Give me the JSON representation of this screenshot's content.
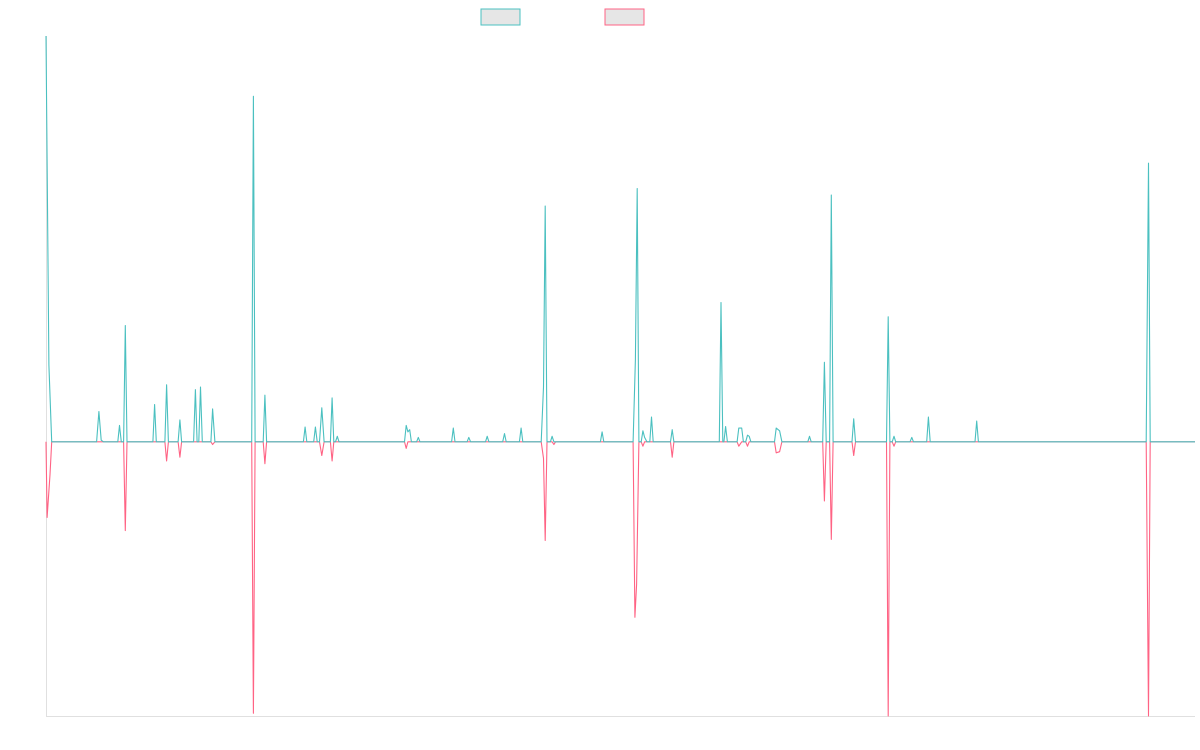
{
  "colors": {
    "series_a": "#4bc0c0",
    "series_b": "#ff6384",
    "axis": "#e0e0e0",
    "legend_fill": "#e6e6e6"
  },
  "chart_data": {
    "type": "line",
    "title": "",
    "xlabel": "",
    "ylabel": "",
    "grid": false,
    "legend": "top-center",
    "x": [
      0,
      200
    ],
    "ylim": [
      -500,
      740
    ],
    "series": [
      {
        "color": "#4bc0c0",
        "points": [
          [
            0,
            740
          ],
          [
            0.5,
            140
          ],
          [
            1.0,
            0
          ],
          [
            3,
            0
          ],
          [
            8.8,
            0
          ],
          [
            9.2,
            55
          ],
          [
            9.6,
            3
          ],
          [
            10,
            0
          ],
          [
            12.5,
            0
          ],
          [
            12.8,
            30
          ],
          [
            13.1,
            0
          ],
          [
            13.5,
            0
          ],
          [
            13.8,
            212
          ],
          [
            14.1,
            0
          ],
          [
            18.6,
            0
          ],
          [
            18.9,
            68
          ],
          [
            19.2,
            0
          ],
          [
            20.7,
            0
          ],
          [
            21,
            104
          ],
          [
            21.3,
            0
          ],
          [
            23,
            0
          ],
          [
            23.3,
            40
          ],
          [
            23.6,
            0
          ],
          [
            25.7,
            0
          ],
          [
            26,
            95
          ],
          [
            26.3,
            0
          ],
          [
            26.6,
            0
          ],
          [
            26.9,
            100
          ],
          [
            27.2,
            0
          ],
          [
            28.7,
            0
          ],
          [
            29,
            60
          ],
          [
            29.4,
            0
          ],
          [
            35.8,
            0
          ],
          [
            36.1,
            630
          ],
          [
            36.4,
            0
          ],
          [
            37.8,
            0
          ],
          [
            38.1,
            85
          ],
          [
            38.4,
            0
          ],
          [
            44.8,
            0
          ],
          [
            45.1,
            27
          ],
          [
            45.4,
            0
          ],
          [
            46.6,
            0
          ],
          [
            46.9,
            27
          ],
          [
            47.2,
            0
          ],
          [
            47.6,
            0
          ],
          [
            48,
            62
          ],
          [
            48.4,
            0
          ],
          [
            49.5,
            0
          ],
          [
            49.8,
            80
          ],
          [
            50.1,
            0
          ],
          [
            50.4,
            0
          ],
          [
            50.7,
            10
          ],
          [
            51,
            0
          ],
          [
            62.4,
            0
          ],
          [
            62.7,
            30
          ],
          [
            63,
            18
          ],
          [
            63.3,
            22
          ],
          [
            63.6,
            0
          ],
          [
            64.5,
            0
          ],
          [
            64.8,
            8
          ],
          [
            65.1,
            0
          ],
          [
            70.6,
            0
          ],
          [
            70.9,
            25
          ],
          [
            71.2,
            0
          ],
          [
            73.3,
            0
          ],
          [
            73.6,
            8
          ],
          [
            73.9,
            0
          ],
          [
            76.5,
            0
          ],
          [
            76.8,
            10
          ],
          [
            77.1,
            0
          ],
          [
            79.5,
            0
          ],
          [
            79.8,
            15
          ],
          [
            80.1,
            0
          ],
          [
            82.4,
            0
          ],
          [
            82.7,
            25
          ],
          [
            83,
            0
          ],
          [
            86.2,
            0
          ],
          [
            86.6,
            100
          ],
          [
            86.9,
            430
          ],
          [
            87.2,
            0
          ],
          [
            87.8,
            0
          ],
          [
            88.1,
            10
          ],
          [
            88.4,
            0
          ],
          [
            96.5,
            0
          ],
          [
            96.8,
            18
          ],
          [
            97.1,
            0
          ],
          [
            102.2,
            0
          ],
          [
            102.6,
            150
          ],
          [
            102.9,
            462
          ],
          [
            103.2,
            0
          ],
          [
            103.6,
            0
          ],
          [
            103.9,
            20
          ],
          [
            104.2,
            8
          ],
          [
            104.6,
            0
          ],
          [
            105.1,
            0
          ],
          [
            105.4,
            45
          ],
          [
            105.7,
            0
          ],
          [
            108.7,
            0
          ],
          [
            109,
            22
          ],
          [
            109.3,
            0
          ],
          [
            117.2,
            0
          ],
          [
            117.5,
            254
          ],
          [
            117.8,
            0
          ],
          [
            118,
            0
          ],
          [
            118.3,
            28
          ],
          [
            118.6,
            0
          ],
          [
            120.3,
            0
          ],
          [
            120.6,
            25
          ],
          [
            121.1,
            25
          ],
          [
            121.4,
            0
          ],
          [
            121.8,
            0
          ],
          [
            122.1,
            12
          ],
          [
            122.4,
            10
          ],
          [
            122.7,
            0
          ],
          [
            126.8,
            0
          ],
          [
            127.1,
            25
          ],
          [
            127.7,
            20
          ],
          [
            128.1,
            0
          ],
          [
            132.6,
            0
          ],
          [
            132.9,
            10
          ],
          [
            133.2,
            0
          ],
          [
            135.2,
            0
          ],
          [
            135.5,
            145
          ],
          [
            135.8,
            0
          ],
          [
            136.4,
            0
          ],
          [
            136.7,
            450
          ],
          [
            137,
            0
          ],
          [
            140.3,
            0
          ],
          [
            140.6,
            42
          ],
          [
            140.9,
            0
          ],
          [
            146.3,
            0
          ],
          [
            146.6,
            228
          ],
          [
            146.9,
            0
          ],
          [
            147.3,
            0
          ],
          [
            147.6,
            10
          ],
          [
            147.9,
            0
          ],
          [
            150.4,
            0
          ],
          [
            150.7,
            8
          ],
          [
            151,
            0
          ],
          [
            153.3,
            0
          ],
          [
            153.6,
            45
          ],
          [
            153.9,
            0
          ],
          [
            161.7,
            0
          ],
          [
            162,
            38
          ],
          [
            162.3,
            0
          ],
          [
            191.5,
            0
          ],
          [
            191.9,
            508
          ],
          [
            192.2,
            0
          ],
          [
            200,
            0
          ]
        ]
      },
      {
        "color": "#ff6384",
        "points": [
          [
            0,
            0
          ],
          [
            0.2,
            -138
          ],
          [
            0.7,
            -60
          ],
          [
            1.0,
            0
          ],
          [
            13.5,
            0
          ],
          [
            13.8,
            -162
          ],
          [
            14.1,
            0
          ],
          [
            20.7,
            0
          ],
          [
            21,
            -35
          ],
          [
            21.3,
            0
          ],
          [
            23,
            0
          ],
          [
            23.3,
            -28
          ],
          [
            23.6,
            0
          ],
          [
            28.7,
            0
          ],
          [
            29,
            -5
          ],
          [
            29.4,
            0
          ],
          [
            35.8,
            0
          ],
          [
            36.1,
            -495
          ],
          [
            36.4,
            0
          ],
          [
            37.8,
            0
          ],
          [
            38.1,
            -40
          ],
          [
            38.4,
            0
          ],
          [
            47.6,
            0
          ],
          [
            48,
            -25
          ],
          [
            48.4,
            0
          ],
          [
            49.5,
            0
          ],
          [
            49.8,
            -35
          ],
          [
            50.1,
            0
          ],
          [
            62.4,
            0
          ],
          [
            62.7,
            -12
          ],
          [
            63,
            0
          ],
          [
            86.2,
            0
          ],
          [
            86.6,
            -30
          ],
          [
            86.9,
            -180
          ],
          [
            87.2,
            0
          ],
          [
            88.1,
            0
          ],
          [
            88.4,
            -5
          ],
          [
            88.7,
            0
          ],
          [
            102.2,
            0
          ],
          [
            102.5,
            -320
          ],
          [
            102.8,
            -260
          ],
          [
            103.2,
            0
          ],
          [
            103.6,
            0
          ],
          [
            103.9,
            -8
          ],
          [
            104.2,
            0
          ],
          [
            108.7,
            0
          ],
          [
            109,
            -28
          ],
          [
            109.3,
            0
          ],
          [
            120.3,
            0
          ],
          [
            120.6,
            -8
          ],
          [
            121.1,
            0
          ],
          [
            121.8,
            0
          ],
          [
            122.1,
            -8
          ],
          [
            122.4,
            0
          ],
          [
            126.8,
            0
          ],
          [
            127.1,
            -20
          ],
          [
            127.7,
            -18
          ],
          [
            128.1,
            0
          ],
          [
            135.2,
            0
          ],
          [
            135.5,
            -108
          ],
          [
            135.8,
            0
          ],
          [
            136.4,
            0
          ],
          [
            136.7,
            -178
          ],
          [
            137,
            0
          ],
          [
            140.3,
            0
          ],
          [
            140.6,
            -25
          ],
          [
            140.9,
            0
          ],
          [
            146.3,
            0
          ],
          [
            146.6,
            -500
          ],
          [
            146.9,
            0
          ],
          [
            147.3,
            0
          ],
          [
            147.6,
            -8
          ],
          [
            147.9,
            0
          ],
          [
            191.5,
            0
          ],
          [
            191.9,
            -500
          ],
          [
            192.2,
            0
          ],
          [
            200,
            0
          ]
        ]
      }
    ]
  }
}
